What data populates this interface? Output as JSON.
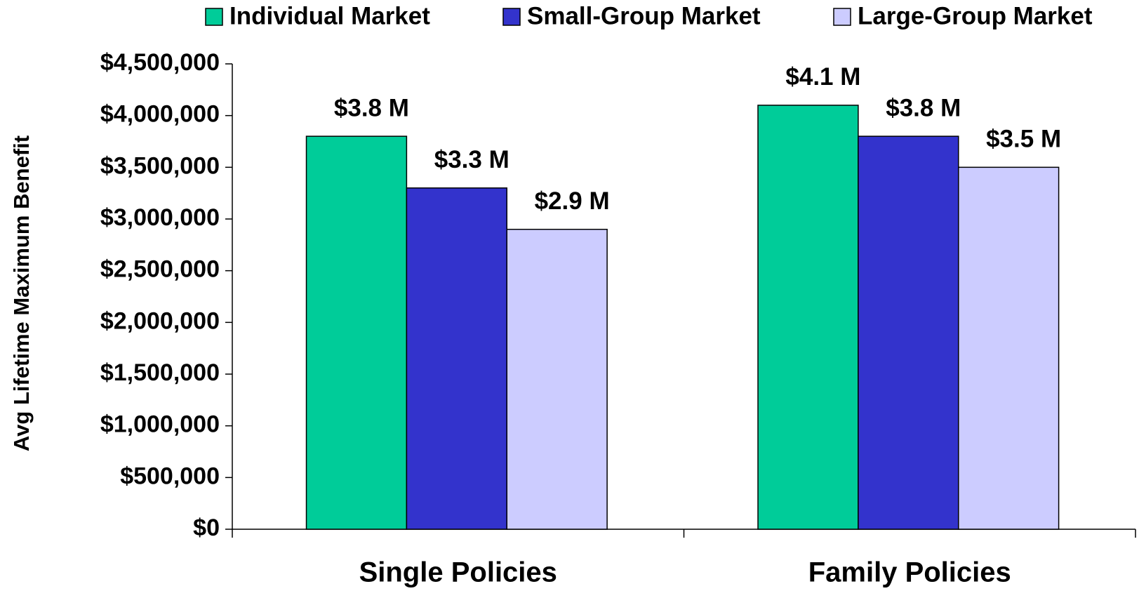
{
  "chart_data": {
    "type": "bar",
    "y_label": "Avg Lifetime Maximum Benefit",
    "categories": [
      "Single Policies",
      "Family Policies"
    ],
    "series": [
      {
        "name": "Individual Market",
        "color": "#00cc99",
        "values": [
          3800000,
          4100000
        ],
        "value_labels": [
          "$3.8 M",
          "$4.1 M"
        ]
      },
      {
        "name": "Small-Group Market",
        "color": "#3333cc",
        "values": [
          3300000,
          3800000
        ],
        "value_labels": [
          "$3.3 M",
          "$3.8 M"
        ]
      },
      {
        "name": "Large-Group Market",
        "color": "#ccccff",
        "values": [
          2900000,
          3500000
        ],
        "value_labels": [
          "$2.9 M",
          "$3.5 M"
        ]
      }
    ],
    "ylim": [
      0,
      4500000
    ],
    "yticks": [
      {
        "value": 0,
        "label": "$0"
      },
      {
        "value": 500000,
        "label": "$500,000"
      },
      {
        "value": 1000000,
        "label": "$1,000,000"
      },
      {
        "value": 1500000,
        "label": "$1,500,000"
      },
      {
        "value": 2000000,
        "label": "$2,000,000"
      },
      {
        "value": 2500000,
        "label": "$2,500,000"
      },
      {
        "value": 3000000,
        "label": "$3,000,000"
      },
      {
        "value": 3500000,
        "label": "$3,500,000"
      },
      {
        "value": 4000000,
        "label": "$4,000,000"
      },
      {
        "value": 4500000,
        "label": "$4,500,000"
      }
    ],
    "legend": "top",
    "grid": false
  }
}
